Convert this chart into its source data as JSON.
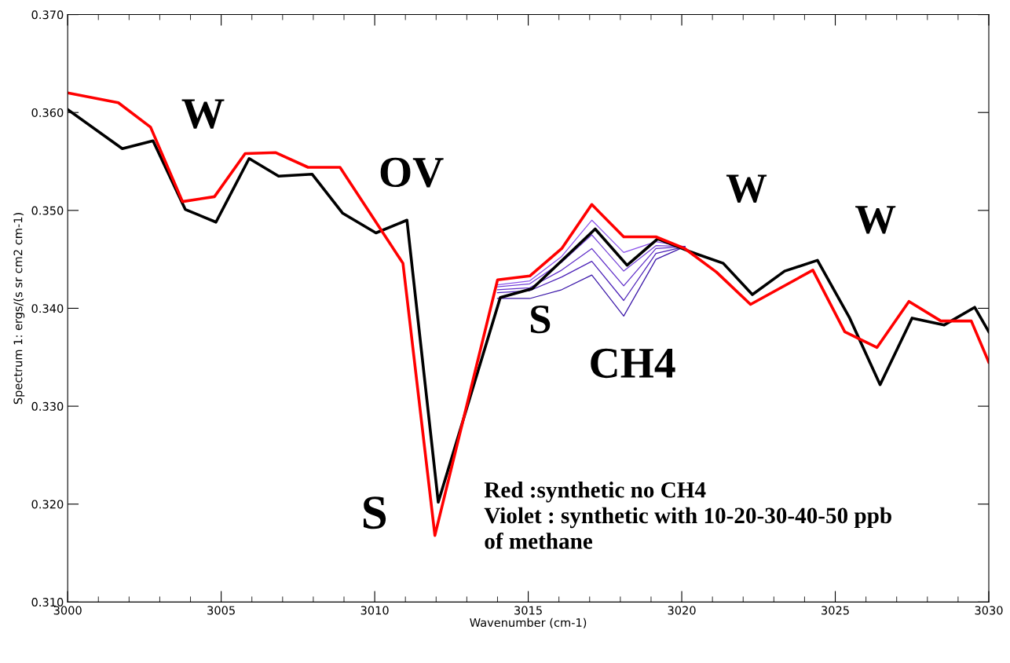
{
  "chart_data": {
    "type": "line",
    "xlabel": "Wavenumber (cm-1)",
    "ylabel": "Spectrum 1: ergs/(s sr cm2 cm-1)",
    "xlim": [
      3000,
      3030
    ],
    "xticks": [
      3000,
      3005,
      3010,
      3015,
      3020,
      3025,
      3030
    ],
    "ylim": [
      0.31,
      0.37
    ],
    "yticks": [
      {
        "value": 0.31,
        "label": "0.310"
      },
      {
        "value": 0.32,
        "label": "0.320"
      },
      {
        "value": 0.33,
        "label": "0.330"
      },
      {
        "value": 0.34,
        "label": "0.340"
      },
      {
        "value": 0.35,
        "label": "0.350"
      },
      {
        "value": 0.36,
        "label": "0.360"
      },
      {
        "value": 0.37,
        "label": "0.370"
      }
    ],
    "grid": false,
    "legend": false,
    "marker": "none",
    "line_style": "solid",
    "series": [
      {
        "color": "#8a50ea",
        "x": [
          3014.0,
          3015.05,
          3016.09,
          3017.07,
          3018.11,
          3019.16,
          3020.1
        ],
        "values": [
          0.3424,
          0.3428,
          0.3453,
          0.349,
          0.3457,
          0.3468,
          0.3463
        ]
      },
      {
        "color": "#7340d8",
        "x": [
          3014.0,
          3015.05,
          3016.09,
          3017.07,
          3018.11,
          3019.16,
          3020.1
        ],
        "values": [
          0.3422,
          0.3425,
          0.3447,
          0.3475,
          0.3438,
          0.3464,
          0.3463
        ]
      },
      {
        "color": "#5e2cc8",
        "x": [
          3014.0,
          3015.05,
          3016.09,
          3017.07,
          3018.11,
          3019.16,
          3020.1
        ],
        "values": [
          0.3419,
          0.3421,
          0.3439,
          0.3461,
          0.3423,
          0.3461,
          0.3463
        ]
      },
      {
        "color": "#4b20b8",
        "x": [
          3014.0,
          3015.05,
          3016.09,
          3017.07,
          3018.11,
          3019.16,
          3020.1
        ],
        "values": [
          0.3416,
          0.3418,
          0.3432,
          0.3448,
          0.3408,
          0.3456,
          0.3463
        ]
      },
      {
        "color": "#3a16a8",
        "x": [
          3014.0,
          3015.05,
          3016.09,
          3017.07,
          3018.11,
          3019.16,
          3020.1
        ],
        "values": [
          0.341,
          0.341,
          0.3419,
          0.3434,
          0.3392,
          0.345,
          0.3463
        ]
      },
      {
        "color": "#000000",
        "x": [
          3000,
          3001.78,
          3002.78,
          3003.83,
          3004.83,
          3005.91,
          3006.87,
          3007.96,
          3008.96,
          3010.04,
          3011.05,
          3012.07,
          3014.09,
          3015.13,
          3017.18,
          3018.22,
          3019.22,
          3020.26,
          3021.35,
          3022.3,
          3023.35,
          3024.42,
          3025.47,
          3026.46,
          3027.5,
          3028.55,
          3029.54,
          3030
        ],
        "values": [
          0.3603,
          0.3563,
          0.3571,
          0.3501,
          0.3488,
          0.3553,
          0.3535,
          0.3537,
          0.3497,
          0.3477,
          0.349,
          0.3202,
          0.3411,
          0.342,
          0.3481,
          0.3444,
          0.3471,
          0.3458,
          0.3446,
          0.3414,
          0.3438,
          0.3449,
          0.339,
          0.3322,
          0.339,
          0.3383,
          0.3401,
          0.3376
        ]
      },
      {
        "color": "#ff0000",
        "x": [
          3000,
          3001.65,
          3002.7,
          3003.74,
          3004.78,
          3005.78,
          3006.78,
          3007.83,
          3008.87,
          3010.92,
          3011.96,
          3014.0,
          3015.05,
          3016.09,
          3017.07,
          3018.11,
          3019.16,
          3020.1,
          3021.13,
          3022.24,
          3024.27,
          3025.31,
          3026.36,
          3027.4,
          3028.44,
          3029.43,
          3030
        ],
        "values": [
          0.362,
          0.361,
          0.3585,
          0.3509,
          0.3514,
          0.3558,
          0.3559,
          0.3544,
          0.3544,
          0.3446,
          0.3168,
          0.3429,
          0.3433,
          0.3461,
          0.3506,
          0.3473,
          0.3473,
          0.3461,
          0.3437,
          0.3404,
          0.3439,
          0.3376,
          0.336,
          0.3407,
          0.3387,
          0.3387,
          0.3345
        ]
      }
    ],
    "annotations": [
      "W",
      "OV",
      "S",
      "S",
      "CH4",
      "W",
      "W",
      "Red :synthetic no CH4\nViolet : synthetic with 10-20-30-40-50 ppb\nof methane"
    ]
  }
}
